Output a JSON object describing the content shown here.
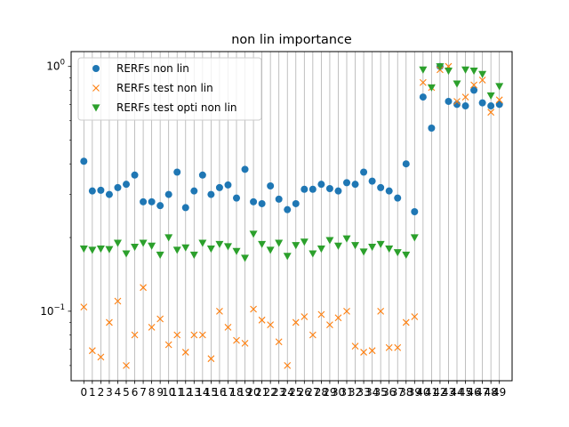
{
  "chart_data": {
    "type": "scatter",
    "title": "non lin importance",
    "xlabel": "",
    "ylabel": "",
    "yscale": "log",
    "ylim": [
      0.052,
      1.15
    ],
    "xlim": [
      -1.5,
      50.5
    ],
    "grid": {
      "vertical": true,
      "horizontal": false
    },
    "y_ticks": [
      {
        "value": 0.1,
        "label": "10^-1",
        "base": "10",
        "exp": "−1"
      },
      {
        "value": 1.0,
        "label": "10^0",
        "base": "10",
        "exp": "0"
      }
    ],
    "x": [
      0,
      1,
      2,
      3,
      4,
      5,
      6,
      7,
      8,
      9,
      10,
      11,
      12,
      13,
      14,
      15,
      16,
      17,
      18,
      19,
      20,
      21,
      22,
      23,
      24,
      25,
      26,
      27,
      28,
      29,
      30,
      31,
      32,
      33,
      34,
      35,
      36,
      37,
      38,
      39,
      40,
      41,
      42,
      43,
      44,
      45,
      46,
      47,
      48,
      49
    ],
    "legend_position": "top-left",
    "series": [
      {
        "name": "RERFs non lin",
        "marker": "circle",
        "color": "#1f77b4",
        "values": [
          0.41,
          0.31,
          0.312,
          0.3,
          0.32,
          0.33,
          0.36,
          0.28,
          0.28,
          0.27,
          0.3,
          0.37,
          0.265,
          0.31,
          0.36,
          0.3,
          0.32,
          0.328,
          0.29,
          0.38,
          0.28,
          0.275,
          0.325,
          0.287,
          0.26,
          0.275,
          0.315,
          0.315,
          0.33,
          0.317,
          0.31,
          0.335,
          0.33,
          0.37,
          0.34,
          0.32,
          0.31,
          0.29,
          0.4,
          0.255,
          0.75,
          0.56,
          1.0,
          0.72,
          0.7,
          0.69,
          0.8,
          0.71,
          0.69,
          0.7
        ]
      },
      {
        "name": "RERFs test non lin",
        "marker": "x",
        "color": "#ff7f0e",
        "values": [
          0.104,
          0.069,
          0.065,
          0.09,
          0.11,
          0.06,
          0.08,
          0.125,
          0.086,
          0.093,
          0.073,
          0.08,
          0.068,
          0.08,
          0.08,
          0.064,
          0.1,
          0.086,
          0.076,
          0.074,
          0.102,
          0.092,
          0.088,
          0.075,
          0.06,
          0.09,
          0.095,
          0.08,
          0.097,
          0.088,
          0.094,
          0.1,
          0.072,
          0.068,
          0.069,
          0.1,
          0.071,
          0.071,
          0.09,
          0.095,
          0.86,
          0.82,
          0.97,
          1.0,
          0.72,
          0.75,
          0.84,
          0.88,
          0.65,
          0.73
        ]
      },
      {
        "name": "RERFs test opti non lin",
        "marker": "triangle-down",
        "color": "#2ca02c",
        "values": [
          0.18,
          0.178,
          0.18,
          0.179,
          0.19,
          0.172,
          0.183,
          0.19,
          0.185,
          0.17,
          0.2,
          0.178,
          0.182,
          0.17,
          0.19,
          0.18,
          0.188,
          0.184,
          0.176,
          0.165,
          0.207,
          0.188,
          0.178,
          0.19,
          0.168,
          0.186,
          0.192,
          0.172,
          0.18,
          0.195,
          0.185,
          0.198,
          0.186,
          0.175,
          0.183,
          0.188,
          0.18,
          0.174,
          0.17,
          0.2,
          0.97,
          0.82,
          1.0,
          0.96,
          0.85,
          0.97,
          0.96,
          0.93,
          0.76,
          0.83
        ]
      }
    ]
  }
}
